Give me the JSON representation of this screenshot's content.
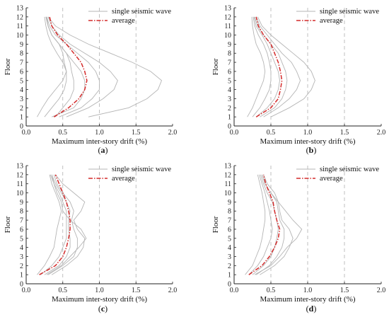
{
  "chart_data": [
    {
      "panel_label": "(a)",
      "type": "line",
      "xlabel": "Maximum inter-story drift (%)",
      "ylabel": "Floor",
      "xlim": [
        0,
        2.0
      ],
      "ylim": [
        0,
        13
      ],
      "xticks": [
        "0.0",
        "0.5",
        "1.0",
        "1.5",
        "2.0"
      ],
      "yticks": [
        "0",
        "1",
        "2",
        "3",
        "4",
        "5",
        "6",
        "7",
        "8",
        "9",
        "10",
        "11",
        "12",
        "13"
      ],
      "grid": "vertical dashed at 0.5 intervals",
      "legend": {
        "position": "top-right",
        "entries": [
          "single seismic wave",
          "average"
        ]
      },
      "floors": [
        1,
        2,
        3,
        4,
        5,
        6,
        7,
        8,
        9,
        10,
        11,
        12
      ],
      "series": [
        {
          "name": "single seismic wave",
          "values": [
            0.15,
            0.22,
            0.3,
            0.4,
            0.5,
            0.55,
            0.5,
            0.42,
            0.35,
            0.3,
            0.27,
            0.25
          ]
        },
        {
          "name": "single seismic wave",
          "values": [
            0.25,
            0.35,
            0.45,
            0.52,
            0.55,
            0.55,
            0.52,
            0.5,
            0.45,
            0.35,
            0.3,
            0.27
          ]
        },
        {
          "name": "single seismic wave",
          "values": [
            0.4,
            0.5,
            0.6,
            0.65,
            0.65,
            0.62,
            0.6,
            0.55,
            0.45,
            0.35,
            0.3,
            0.27
          ]
        },
        {
          "name": "single seismic wave",
          "values": [
            0.35,
            0.65,
            0.75,
            0.8,
            0.8,
            0.75,
            0.65,
            0.55,
            0.45,
            0.35,
            0.3,
            0.28
          ]
        },
        {
          "name": "single seismic wave",
          "values": [
            0.45,
            0.75,
            0.9,
            1.0,
            1.0,
            0.95,
            0.85,
            0.7,
            0.55,
            0.4,
            0.32,
            0.28
          ]
        },
        {
          "name": "single seismic wave",
          "values": [
            0.55,
            0.85,
            1.05,
            1.2,
            1.25,
            1.15,
            1.0,
            0.8,
            0.6,
            0.45,
            0.35,
            0.3
          ]
        },
        {
          "name": "single seismic wave",
          "values": [
            0.85,
            1.4,
            1.65,
            1.8,
            1.85,
            1.7,
            1.45,
            1.15,
            0.85,
            0.6,
            0.4,
            0.3
          ]
        },
        {
          "name": "average",
          "values": [
            0.38,
            0.58,
            0.72,
            0.8,
            0.83,
            0.8,
            0.75,
            0.65,
            0.55,
            0.43,
            0.35,
            0.32
          ]
        }
      ]
    },
    {
      "panel_label": "(b)",
      "type": "line",
      "xlabel": "Maximum inter-story drift (%)",
      "ylabel": "Floor",
      "xlim": [
        0,
        2.0
      ],
      "ylim": [
        0,
        13
      ],
      "xticks": [
        "0.0",
        "0.5",
        "1.0",
        "1.5",
        "2.0"
      ],
      "yticks": [
        "0",
        "1",
        "2",
        "3",
        "4",
        "5",
        "6",
        "7",
        "8",
        "9",
        "10",
        "11",
        "12",
        "13"
      ],
      "grid": "vertical dashed at 0.5 intervals",
      "legend": {
        "position": "top-right",
        "entries": [
          "single seismic wave",
          "average"
        ]
      },
      "floors": [
        1,
        2,
        3,
        4,
        5,
        6,
        7,
        8,
        9,
        10,
        11,
        12
      ],
      "series": [
        {
          "name": "single seismic wave",
          "values": [
            0.18,
            0.25,
            0.3,
            0.35,
            0.4,
            0.42,
            0.4,
            0.36,
            0.3,
            0.27,
            0.25,
            0.24
          ]
        },
        {
          "name": "single seismic wave",
          "values": [
            0.25,
            0.35,
            0.42,
            0.48,
            0.5,
            0.5,
            0.48,
            0.45,
            0.4,
            0.33,
            0.28,
            0.26
          ]
        },
        {
          "name": "single seismic wave",
          "values": [
            0.3,
            0.45,
            0.55,
            0.6,
            0.62,
            0.6,
            0.55,
            0.5,
            0.45,
            0.38,
            0.3,
            0.27
          ]
        },
        {
          "name": "single seismic wave",
          "values": [
            0.35,
            0.55,
            0.65,
            0.7,
            0.72,
            0.7,
            0.65,
            0.6,
            0.5,
            0.4,
            0.32,
            0.28
          ]
        },
        {
          "name": "single seismic wave",
          "values": [
            0.4,
            0.6,
            0.75,
            0.85,
            0.9,
            0.85,
            0.78,
            0.65,
            0.55,
            0.45,
            0.35,
            0.3
          ]
        },
        {
          "name": "single seismic wave",
          "values": [
            0.5,
            0.75,
            0.95,
            1.05,
            1.1,
            1.05,
            0.95,
            0.8,
            0.65,
            0.5,
            0.38,
            0.32
          ]
        },
        {
          "name": "average",
          "values": [
            0.3,
            0.5,
            0.6,
            0.63,
            0.65,
            0.63,
            0.6,
            0.55,
            0.5,
            0.4,
            0.33,
            0.3
          ]
        }
      ]
    },
    {
      "panel_label": "(c)",
      "type": "line",
      "xlabel": "Maximum inter-story drift (%)",
      "ylabel": "Floor",
      "xlim": [
        0,
        2.0
      ],
      "ylim": [
        0,
        13
      ],
      "xticks": [
        "0.0",
        "0.5",
        "1.0",
        "1.5",
        "2.0"
      ],
      "yticks": [
        "0",
        "1",
        "2",
        "3",
        "4",
        "5",
        "6",
        "7",
        "8",
        "9",
        "10",
        "11",
        "12",
        "13"
      ],
      "grid": "vertical dashed at 0.5 intervals",
      "legend": {
        "position": "top-right",
        "entries": [
          "single seismic wave",
          "average"
        ]
      },
      "floors": [
        1,
        2,
        3,
        4,
        5,
        6,
        7,
        8,
        9,
        10,
        11,
        12
      ],
      "series": [
        {
          "name": "single seismic wave",
          "values": [
            0.15,
            0.25,
            0.32,
            0.38,
            0.4,
            0.42,
            0.45,
            0.48,
            0.45,
            0.4,
            0.35,
            0.32
          ]
        },
        {
          "name": "single seismic wave",
          "values": [
            0.2,
            0.35,
            0.45,
            0.5,
            0.55,
            0.55,
            0.55,
            0.55,
            0.5,
            0.45,
            0.38,
            0.33
          ]
        },
        {
          "name": "single seismic wave",
          "values": [
            0.25,
            0.45,
            0.55,
            0.6,
            0.6,
            0.58,
            0.58,
            0.6,
            0.55,
            0.48,
            0.4,
            0.35
          ]
        },
        {
          "name": "single seismic wave",
          "values": [
            0.3,
            0.5,
            0.65,
            0.7,
            0.7,
            0.65,
            0.62,
            0.65,
            0.6,
            0.5,
            0.42,
            0.38
          ]
        },
        {
          "name": "single seismic wave",
          "values": [
            0.35,
            0.55,
            0.7,
            0.78,
            0.8,
            0.7,
            0.65,
            0.75,
            0.8,
            0.65,
            0.5,
            0.4
          ]
        },
        {
          "name": "single seismic wave",
          "values": [
            0.28,
            0.48,
            0.6,
            0.72,
            0.82,
            0.75,
            0.6,
            0.5,
            0.48,
            0.42,
            0.38,
            0.35
          ]
        },
        {
          "name": "average",
          "values": [
            0.18,
            0.4,
            0.5,
            0.55,
            0.58,
            0.6,
            0.6,
            0.58,
            0.55,
            0.5,
            0.45,
            0.4
          ]
        }
      ]
    },
    {
      "panel_label": "(d)",
      "type": "line",
      "xlabel": "Maximum inter-story drift (%)",
      "ylabel": "Floor",
      "xlim": [
        0,
        2.0
      ],
      "ylim": [
        0,
        13
      ],
      "xticks": [
        "0.0",
        "0.5",
        "1.0",
        "1.5",
        "2.0"
      ],
      "yticks": [
        "0",
        "1",
        "2",
        "3",
        "4",
        "5",
        "6",
        "7",
        "8",
        "9",
        "10",
        "11",
        "12",
        "13"
      ],
      "grid": "vertical dashed at 0.5 intervals",
      "legend": {
        "position": "top-right",
        "entries": [
          "single seismic wave",
          "average"
        ]
      },
      "floors": [
        1,
        2,
        3,
        4,
        5,
        6,
        7,
        8,
        9,
        10,
        11,
        12
      ],
      "series": [
        {
          "name": "single seismic wave",
          "values": [
            0.15,
            0.25,
            0.3,
            0.35,
            0.38,
            0.4,
            0.42,
            0.42,
            0.4,
            0.38,
            0.35,
            0.32
          ]
        },
        {
          "name": "single seismic wave",
          "values": [
            0.2,
            0.32,
            0.4,
            0.45,
            0.5,
            0.52,
            0.5,
            0.48,
            0.45,
            0.42,
            0.38,
            0.34
          ]
        },
        {
          "name": "single seismic wave",
          "values": [
            0.25,
            0.4,
            0.5,
            0.55,
            0.58,
            0.6,
            0.58,
            0.55,
            0.52,
            0.45,
            0.4,
            0.36
          ]
        },
        {
          "name": "single seismic wave",
          "values": [
            0.3,
            0.48,
            0.58,
            0.65,
            0.68,
            0.68,
            0.62,
            0.6,
            0.58,
            0.5,
            0.42,
            0.38
          ]
        },
        {
          "name": "single seismic wave",
          "values": [
            0.35,
            0.55,
            0.68,
            0.75,
            0.8,
            0.75,
            0.65,
            0.62,
            0.6,
            0.55,
            0.45,
            0.4
          ]
        },
        {
          "name": "single seismic wave",
          "values": [
            0.28,
            0.5,
            0.62,
            0.72,
            0.85,
            0.92,
            0.8,
            0.7,
            0.6,
            0.5,
            0.42,
            0.38
          ]
        },
        {
          "name": "average",
          "values": [
            0.2,
            0.38,
            0.48,
            0.55,
            0.6,
            0.62,
            0.58,
            0.55,
            0.53,
            0.48,
            0.43,
            0.4
          ]
        }
      ]
    }
  ],
  "colors": {
    "single": "#b5b5b5",
    "average": "#d42a2a",
    "grid": "#b0b0b0",
    "axis": "#222222"
  }
}
